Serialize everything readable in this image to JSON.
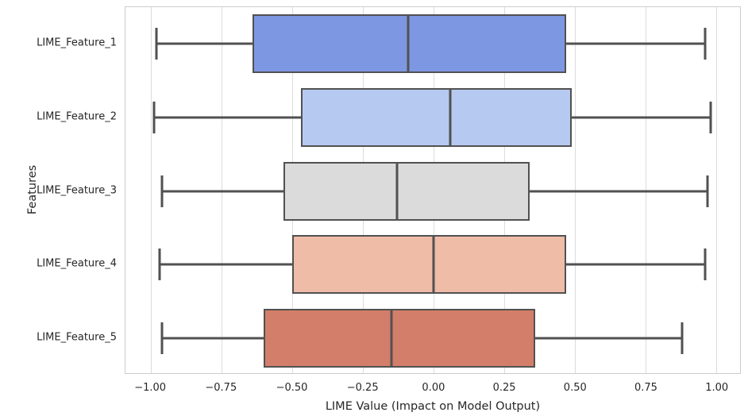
{
  "figure": {
    "background_color": "#ffffff",
    "text_color": "#262626",
    "grid_color": "#dcdcdc",
    "spine_color": "#cccccc",
    "box_line_color": "#515151"
  },
  "chart_data": {
    "type": "boxplot",
    "orientation": "horizontal",
    "title": "",
    "xlabel": "LIME Value (Impact on Model Output)",
    "ylabel": "Features",
    "xlim": [
      -1.09,
      1.085
    ],
    "grid": "vertical-only",
    "legend": "none",
    "palette_name": "coolwarm",
    "x_ticks": [
      {
        "value": -1.0,
        "label": "−1.00"
      },
      {
        "value": -0.75,
        "label": "−0.75"
      },
      {
        "value": -0.5,
        "label": "−0.50"
      },
      {
        "value": -0.25,
        "label": "−0.25"
      },
      {
        "value": 0.0,
        "label": "0.00"
      },
      {
        "value": 0.25,
        "label": "0.25"
      },
      {
        "value": 0.5,
        "label": "0.50"
      },
      {
        "value": 0.75,
        "label": "0.75"
      },
      {
        "value": 1.0,
        "label": "1.00"
      }
    ],
    "categories": [
      "LIME_Feature_1",
      "LIME_Feature_2",
      "LIME_Feature_3",
      "LIME_Feature_4",
      "LIME_Feature_5"
    ],
    "series": [
      {
        "feature": "LIME_Feature_1",
        "whisker_low": -0.98,
        "q1": -0.64,
        "median": -0.09,
        "q3": 0.47,
        "whisker_high": 0.96,
        "fill_color": "#7e97e2"
      },
      {
        "feature": "LIME_Feature_2",
        "whisker_low": -0.99,
        "q1": -0.47,
        "median": 0.06,
        "q3": 0.49,
        "whisker_high": 0.98,
        "fill_color": "#b6c9f1"
      },
      {
        "feature": "LIME_Feature_3",
        "whisker_low": -0.96,
        "q1": -0.53,
        "median": -0.13,
        "q3": 0.34,
        "whisker_high": 0.97,
        "fill_color": "#dcdbdb"
      },
      {
        "feature": "LIME_Feature_4",
        "whisker_low": -0.97,
        "q1": -0.5,
        "median": 0.0,
        "q3": 0.47,
        "whisker_high": 0.96,
        "fill_color": "#efbca8"
      },
      {
        "feature": "LIME_Feature_5",
        "whisker_low": -0.96,
        "q1": -0.6,
        "median": -0.15,
        "q3": 0.36,
        "whisker_high": 0.88,
        "fill_color": "#d37e6a"
      }
    ]
  }
}
